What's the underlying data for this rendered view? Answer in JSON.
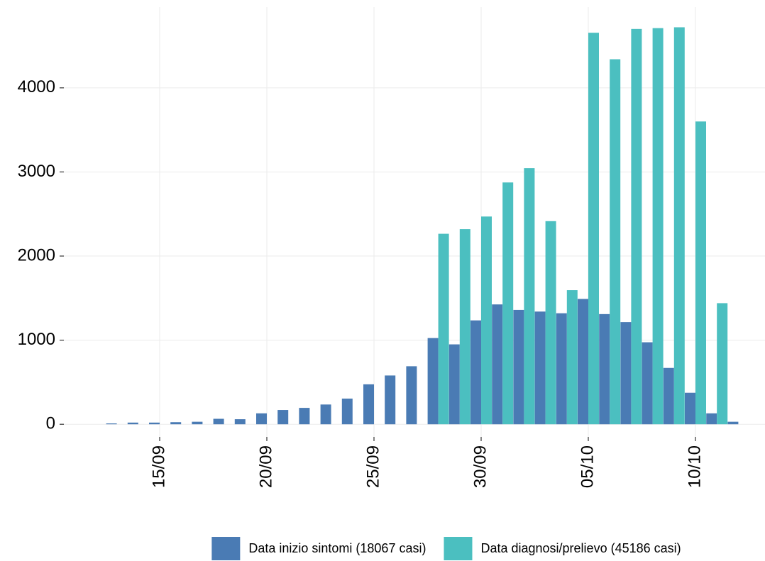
{
  "chart_data": {
    "type": "bar",
    "categories": [
      null,
      null,
      "15/09",
      null,
      null,
      null,
      null,
      "20/09",
      null,
      null,
      null,
      null,
      "25/09",
      null,
      null,
      null,
      null,
      "30/09",
      null,
      null,
      null,
      null,
      "05/10",
      null,
      null,
      null,
      null,
      "10/10",
      null,
      null
    ],
    "series": [
      {
        "name": "Data inizio sintomi (18067 casi)",
        "color": "#4a7bb4",
        "values": [
          10,
          20,
          20,
          25,
          30,
          65,
          60,
          130,
          170,
          195,
          235,
          305,
          475,
          580,
          690,
          1025,
          950,
          1235,
          1425,
          1360,
          1340,
          1320,
          1490,
          1310,
          1215,
          975,
          670,
          375,
          130,
          30
        ]
      },
      {
        "name": "Data diagnosi/prelievo (45186 casi)",
        "color": "#4bbfc0",
        "values": [
          null,
          null,
          null,
          null,
          null,
          null,
          null,
          null,
          null,
          null,
          null,
          null,
          null,
          null,
          null,
          2265,
          2320,
          2470,
          2875,
          3045,
          2415,
          1595,
          4655,
          4340,
          4700,
          4710,
          4720,
          3600,
          1440,
          null
        ]
      }
    ],
    "ylim": [
      -150,
      4960
    ],
    "yticks": [
      0,
      1000,
      2000,
      3000,
      4000
    ],
    "grid": true,
    "legend": "bottom"
  }
}
